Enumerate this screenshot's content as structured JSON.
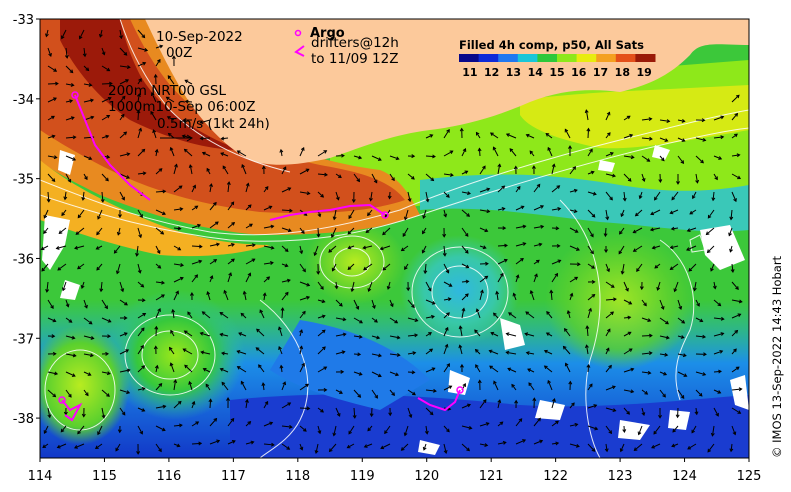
{
  "map": {
    "date_line1": "10-Sep-2022",
    "date_line2": "00Z",
    "depth_line1": "200m  NRT00 GSL",
    "depth_line2": "1000m10-Sep 06:00Z",
    "scale_label": "0.5m/s (1kt 24h)",
    "argo_title": "Argo",
    "argo_line1": "drifters@12h",
    "argo_line2": "to 11/09 12Z",
    "colorbar_title": "Filled 4h comp, p50, All Sats",
    "credit": "© IMOS 13-Sep-2022 14:43 Hobart"
  },
  "colors": {
    "land": "#fcc99b",
    "argo": "#ff00ff",
    "contour": "#ffffff",
    "cloud": "#ffffff"
  },
  "axes": {
    "x_ticks": [
      114,
      115,
      116,
      117,
      118,
      119,
      120,
      121,
      122,
      123,
      124,
      125
    ],
    "y_ticks": [
      -33,
      -34,
      -35,
      -36,
      -37,
      -38
    ],
    "xlim": [
      114,
      125
    ],
    "ylim": [
      -38.5,
      -33
    ]
  },
  "colorbar": {
    "ticks": [
      11,
      12,
      13,
      14,
      15,
      16,
      17,
      18,
      19
    ],
    "range": [
      10.5,
      19.5
    ],
    "colors": [
      "#08088a",
      "#0d2ad8",
      "#1f78f0",
      "#19c6d8",
      "#2ec83a",
      "#8ee81a",
      "#e8ec10",
      "#f4a020",
      "#e4501a",
      "#9a1a08"
    ]
  },
  "icons": {
    "argo_marker": "circle-marker-icon",
    "argo_track": "chevron-track-icon",
    "scale_arrow": "arrow-right-icon"
  }
}
